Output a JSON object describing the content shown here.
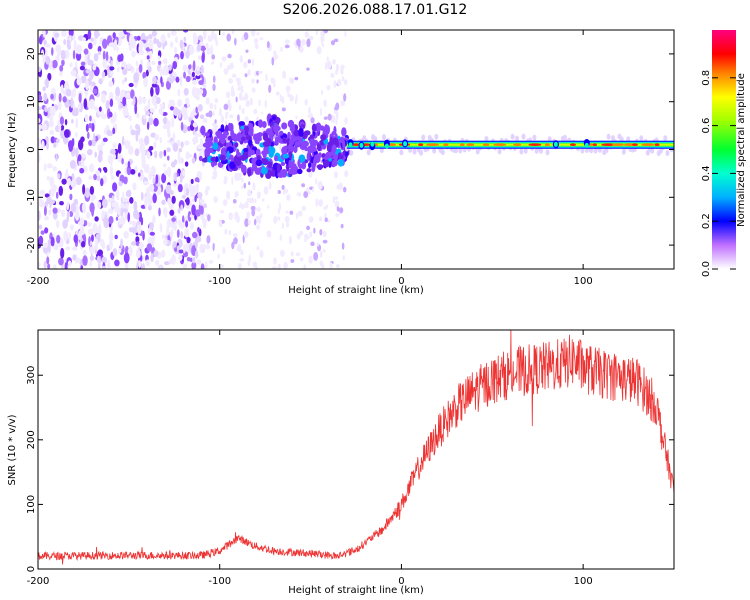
{
  "page_title": "S206.2026.088.17.01.G12",
  "chart_data": [
    {
      "type": "heatmap",
      "title": "S206.2026.088.17.01.G12",
      "xlabel": "Height of straight line (km)",
      "ylabel": "Frequency (Hz)",
      "xlim": [
        -200,
        150
      ],
      "ylim": [
        -25,
        25
      ],
      "xticks": [
        -200,
        -100,
        0,
        100
      ],
      "yticks": [
        -20,
        -10,
        0,
        10,
        20
      ],
      "xtick_labels": [
        "-200",
        "-100",
        "0",
        "100"
      ],
      "ytick_labels": [
        "-20",
        "-10",
        "0",
        "10",
        "20"
      ],
      "colorbar": {
        "label": "Normalized spectral amplitude",
        "range": [
          0,
          1
        ],
        "ticks": [
          0.0,
          0.2,
          0.4,
          0.6,
          0.8
        ],
        "tick_labels": [
          "0.0",
          "0.2",
          "0.4",
          "0.6",
          "0.8"
        ],
        "colors": [
          "#e8d8ff",
          "#5500ff",
          "#0000ff",
          "#00c8ff",
          "#00ff60",
          "#c8ff00",
          "#ffa000",
          "#ff0000",
          "#ff0080"
        ]
      },
      "regions": [
        {
          "x": [
            -200,
            -108
          ],
          "y": [
            -25,
            25
          ],
          "amplitude": 0.15,
          "description": "diffuse noise"
        },
        {
          "x": [
            -108,
            -30
          ],
          "y": [
            -6,
            7
          ],
          "amplitude": 0.25,
          "description": "noise cluster"
        },
        {
          "x": [
            -30,
            150
          ],
          "y": [
            0,
            2
          ],
          "amplitude": 0.7,
          "description": "narrow band"
        }
      ],
      "band_center_hz": 1
    },
    {
      "type": "line",
      "xlabel": "Height of straight line (km)",
      "ylabel": "SNR (10 * v/v)",
      "xlim": [
        -200,
        150
      ],
      "ylim": [
        0,
        370
      ],
      "xticks": [
        -200,
        -100,
        0,
        100
      ],
      "yticks": [
        0,
        100,
        200,
        300
      ],
      "xtick_labels": [
        "-200",
        "-100",
        "0",
        "100"
      ],
      "ytick_labels": [
        "0",
        "100",
        "200",
        "300"
      ],
      "series": [
        {
          "name": "SNR",
          "color": "#ee3333",
          "envelope_x": [
            -200,
            -150,
            -110,
            -100,
            -90,
            -80,
            -70,
            -50,
            -35,
            -25,
            -10,
            0,
            10,
            20,
            30,
            40,
            50,
            60,
            70,
            80,
            90,
            95,
            100,
            110,
            120,
            130,
            140,
            150
          ],
          "envelope_y": [
            20,
            21,
            21,
            28,
            48,
            35,
            28,
            24,
            20,
            30,
            62,
            100,
            160,
            210,
            250,
            275,
            292,
            303,
            308,
            312,
            318,
            325,
            312,
            302,
            297,
            290,
            255,
            120
          ]
        }
      ]
    }
  ]
}
